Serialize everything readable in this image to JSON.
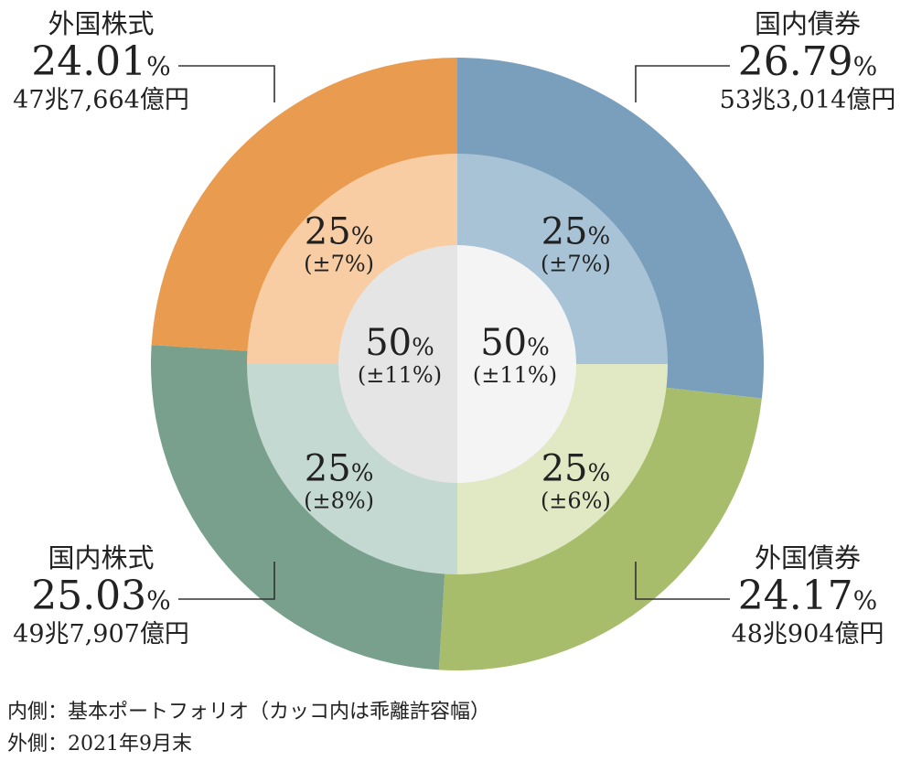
{
  "chart_data": {
    "type": "pie",
    "subtype": "nested-donut",
    "outer_ring": {
      "description": "外側：2021年9月末",
      "slices": [
        {
          "name": "国内債券",
          "value": 26.79,
          "amount": "53兆3,014億円",
          "color": "#7a9fbd"
        },
        {
          "name": "外国債券",
          "value": 24.17,
          "amount": "48兆904億円",
          "color": "#a8bd6c"
        },
        {
          "name": "国内株式",
          "value": 25.03,
          "amount": "49兆7,907億円",
          "color": "#79a08d"
        },
        {
          "name": "外国株式",
          "value": 24.01,
          "amount": "47兆7,664億円",
          "color": "#e99b4f"
        }
      ]
    },
    "middle_ring": {
      "slices": [
        {
          "value": 25,
          "label": "25",
          "range": "(±7%)",
          "color": "#a9c3d6"
        },
        {
          "value": 25,
          "label": "25",
          "range": "(±6%)",
          "color": "#e0e8c4"
        },
        {
          "value": 25,
          "label": "25",
          "range": "(±8%)",
          "color": "#c3d9d2"
        },
        {
          "value": 25,
          "label": "25",
          "range": "(±7%)",
          "color": "#f8cda4"
        }
      ]
    },
    "inner_circle": {
      "halves": [
        {
          "value": 50,
          "label": "50",
          "range": "(±11%)",
          "color": "#f4f4f4"
        },
        {
          "value": 50,
          "label": "50",
          "range": "(±11%)",
          "color": "#e5e5e5"
        }
      ]
    },
    "percent_unit": "%"
  },
  "footnotes": {
    "line1": "内側：基本ポートフォリオ（カッコ内は乖離許容幅）",
    "line2": "外側：2021年9月末"
  }
}
